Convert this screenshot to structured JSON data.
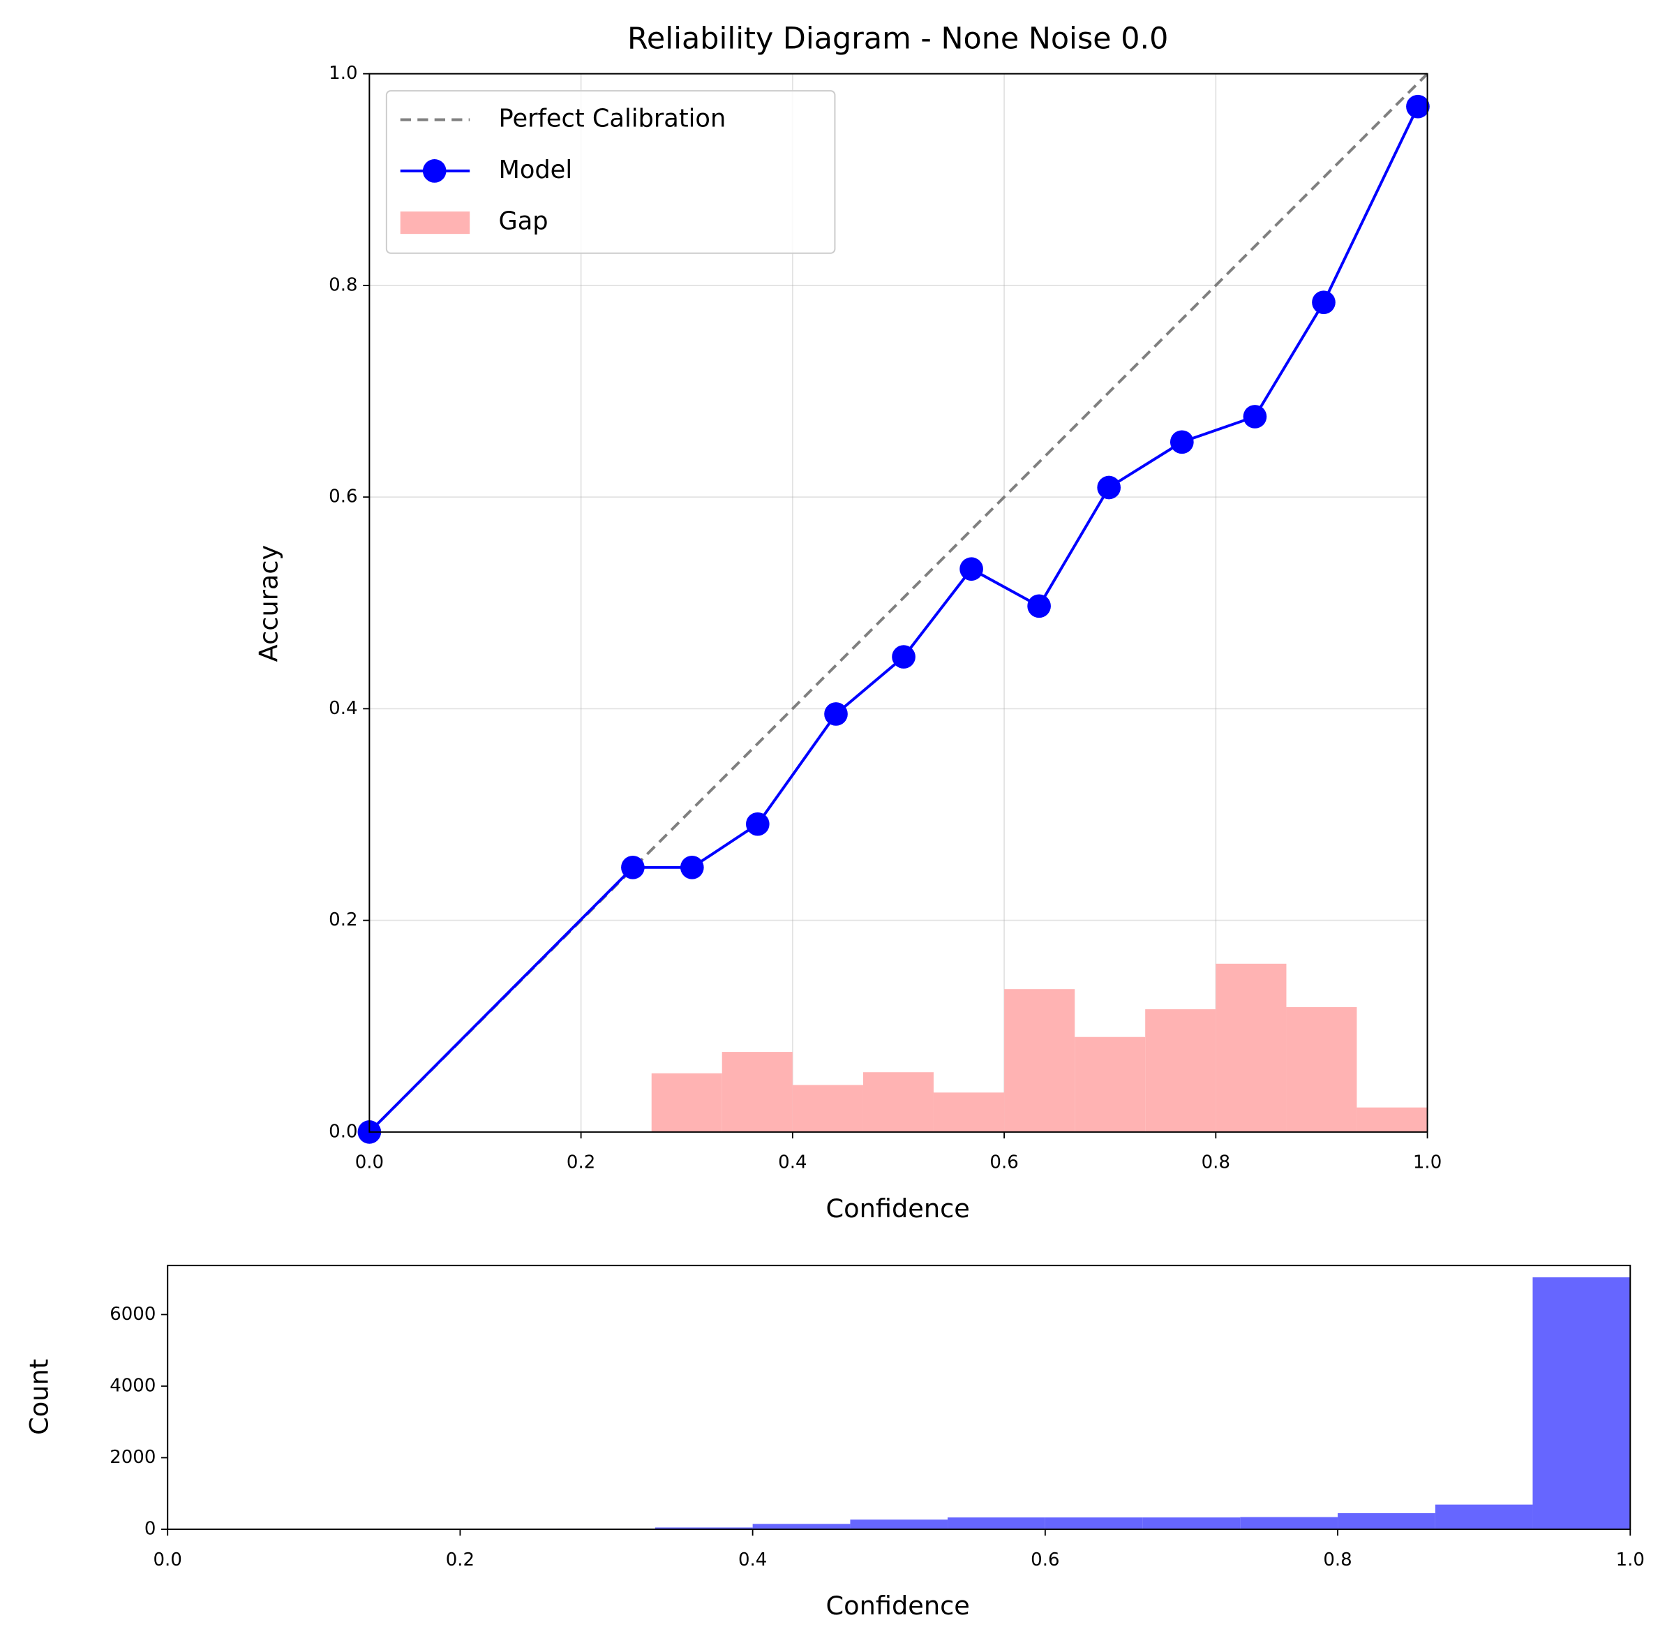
{
  "chart_data": [
    {
      "type": "reliability",
      "title": "Reliability Diagram - None Noise 0.0",
      "xlabel": "Confidence",
      "ylabel": "Accuracy",
      "xlim": [
        0,
        1
      ],
      "ylim": [
        0,
        1
      ],
      "xticks": [
        {
          "value": 0,
          "label": "0.0"
        },
        {
          "value": 0.2,
          "label": "0.2"
        },
        {
          "value": 0.4,
          "label": "0.4"
        },
        {
          "value": 0.6,
          "label": "0.6"
        },
        {
          "value": 0.8,
          "label": "0.8"
        },
        {
          "value": 1,
          "label": "1.0"
        }
      ],
      "yticks": [
        {
          "value": 0,
          "label": "0.0"
        },
        {
          "value": 0.2,
          "label": "0.2"
        },
        {
          "value": 0.4,
          "label": "0.4"
        },
        {
          "value": 0.6,
          "label": "0.6"
        },
        {
          "value": 0.8,
          "label": "0.8"
        },
        {
          "value": 1,
          "label": "1.0"
        }
      ],
      "grid": true,
      "legend": "upper left",
      "series": [
        {
          "name": "Perfect Calibration",
          "color": "#808080",
          "style": "dashed",
          "x": [
            0,
            1
          ],
          "values": [
            0,
            1
          ]
        },
        {
          "name": "Model",
          "color": "#0000ff",
          "marker": "o",
          "x": [
            0,
            0.249,
            0.305,
            0.367,
            0.441,
            0.505,
            0.569,
            0.633,
            0.699,
            0.768,
            0.837,
            0.902,
            0.991
          ],
          "values": [
            0,
            0.25,
            0.25,
            0.291,
            0.395,
            0.449,
            0.532,
            0.497,
            0.609,
            0.652,
            0.676,
            0.784,
            0.969
          ]
        }
      ],
      "gap": {
        "name": "Gap",
        "color": "#ffb3b3",
        "bins": [
          0,
          0.0667,
          0.1333,
          0.2,
          0.2667,
          0.3333,
          0.4,
          0.4667,
          0.5333,
          0.6,
          0.6667,
          0.7333,
          0.8,
          0.8667,
          0.9333,
          1
        ],
        "values": [
          0,
          0,
          0,
          0,
          0.0555,
          0.0757,
          0.0444,
          0.0565,
          0.0373,
          0.135,
          0.0898,
          0.116,
          0.159,
          0.118,
          0.0232
        ]
      }
    },
    {
      "type": "histogram",
      "xlabel": "Confidence",
      "ylabel": "Count",
      "color": "#6666ff",
      "xlim": [
        0,
        1
      ],
      "ylim": [
        0,
        7371
      ],
      "xticks": [
        {
          "value": 0,
          "label": "0.0"
        },
        {
          "value": 0.2,
          "label": "0.2"
        },
        {
          "value": 0.4,
          "label": "0.4"
        },
        {
          "value": 0.6,
          "label": "0.6"
        },
        {
          "value": 0.8,
          "label": "0.8"
        },
        {
          "value": 1,
          "label": "1.0"
        }
      ],
      "yticks": [
        0,
        2000,
        4000,
        6000
      ],
      "bins": [
        0,
        0.0667,
        0.1333,
        0.2,
        0.2667,
        0.3333,
        0.4,
        0.4667,
        0.5333,
        0.6,
        0.6667,
        0.7333,
        0.8,
        0.8667,
        0.9333,
        1
      ],
      "values": [
        0,
        0,
        0,
        4,
        20,
        50,
        150,
        270,
        330,
        330,
        330,
        340,
        450,
        690,
        7040
      ]
    }
  ]
}
